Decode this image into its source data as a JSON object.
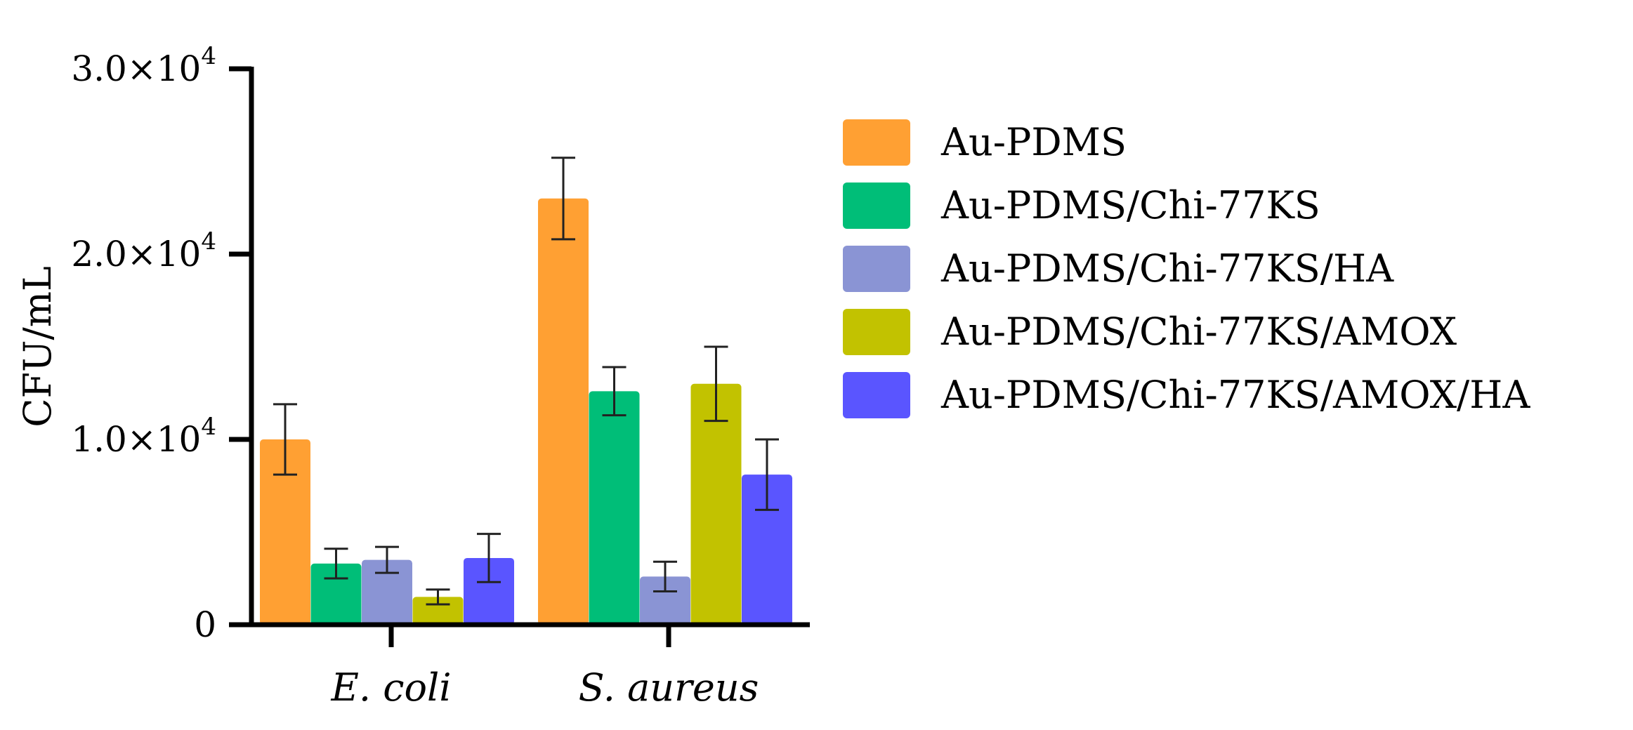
{
  "chart_data": {
    "type": "bar",
    "title": "",
    "xlabel": "",
    "ylabel": "CFU/mL",
    "ylim": [
      0,
      30000
    ],
    "yticks": [
      {
        "value": 0,
        "label": "0",
        "exp": ""
      },
      {
        "value": 10000,
        "label": "1.0×10",
        "exp": "4"
      },
      {
        "value": 20000,
        "label": "2.0×10",
        "exp": "4"
      },
      {
        "value": 30000,
        "label": "3.0×10",
        "exp": "4"
      }
    ],
    "categories": [
      "E. coli",
      "S. aureus"
    ],
    "series": [
      {
        "name": "Au-PDMS",
        "color": "#FFA033",
        "values": [
          10000,
          23000
        ],
        "errors": [
          1900,
          2200
        ]
      },
      {
        "name": "Au-PDMS/Chi-77KS",
        "color": "#00BE78",
        "values": [
          3300,
          12600
        ],
        "errors": [
          800,
          1300
        ]
      },
      {
        "name": "Au-PDMS/Chi-77KS/HA",
        "color": "#8A94D4",
        "values": [
          3500,
          2600
        ],
        "errors": [
          700,
          800
        ]
      },
      {
        "name": "Au-PDMS/Chi-77KS/AMOX",
        "color": "#C2C200",
        "values": [
          1500,
          13000
        ],
        "errors": [
          400,
          2000
        ]
      },
      {
        "name": "Au-PDMS/Chi-77KS/AMOX/HA",
        "color": "#5A55FF",
        "values": [
          3600,
          8100
        ],
        "errors": [
          1300,
          1900
        ]
      }
    ],
    "legend_position": "right",
    "grid": false
  }
}
